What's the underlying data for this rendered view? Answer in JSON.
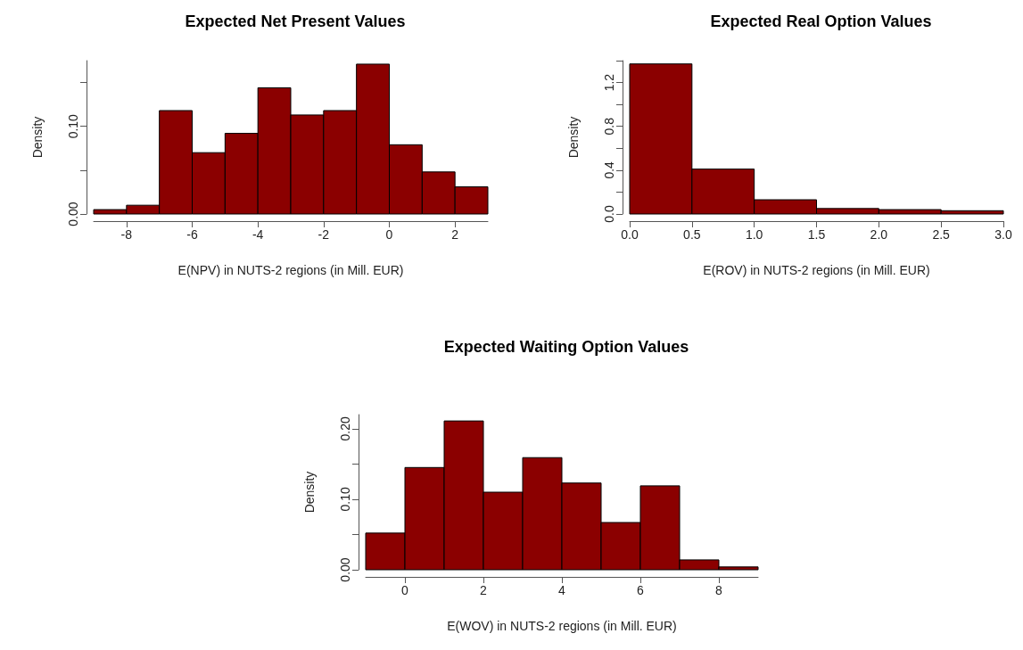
{
  "chart_data": [
    {
      "type": "histogram",
      "title": "Expected Net Present Values",
      "xlabel": "E(NPV) in NUTS-2 regions (in Mill. EUR)",
      "ylabel": "Density",
      "color": "#8b0000",
      "bins": [
        -9,
        -8,
        -7,
        -6,
        -5,
        -4,
        -3,
        -2,
        -1,
        0,
        1,
        2,
        3
      ],
      "values": [
        0.005,
        0.01,
        0.118,
        0.07,
        0.092,
        0.144,
        0.113,
        0.118,
        0.171,
        0.079,
        0.048,
        0.031
      ],
      "xlim": [
        -9,
        3
      ],
      "xticks": [
        -8,
        -6,
        -4,
        -2,
        0,
        2
      ],
      "ylim": [
        0,
        0.175
      ],
      "yticks": [
        {
          "value": 0,
          "label": "0.00"
        },
        {
          "value": 0.05,
          "label": null
        },
        {
          "value": 0.1,
          "label": "0.10"
        },
        {
          "value": 0.15,
          "label": null
        }
      ],
      "grid": false
    },
    {
      "type": "histogram",
      "title": "Expected Real Option Values",
      "xlabel": "E(ROV) in NUTS-2 regions (in Mill. EUR)",
      "ylabel": "Density",
      "color": "#8b0000",
      "bins": [
        0,
        0.5,
        1,
        1.5,
        2,
        2.5,
        3
      ],
      "values": [
        1.37,
        0.41,
        0.13,
        0.05,
        0.04,
        0.03
      ],
      "xlim": [
        0,
        3
      ],
      "xticks": [
        {
          "value": 0,
          "label": "0.0"
        },
        {
          "value": 0.5,
          "label": "0.5"
        },
        {
          "value": 1,
          "label": "1.0"
        },
        {
          "value": 1.5,
          "label": "1.5"
        },
        {
          "value": 2,
          "label": "2.0"
        },
        {
          "value": 2.5,
          "label": "2.5"
        },
        {
          "value": 3,
          "label": "3.0"
        }
      ],
      "ylim": [
        0,
        1.4
      ],
      "yticks": [
        {
          "value": 0,
          "label": "0.0"
        },
        {
          "value": 0.2,
          "label": null
        },
        {
          "value": 0.4,
          "label": "0.4"
        },
        {
          "value": 0.6,
          "label": null
        },
        {
          "value": 0.8,
          "label": "0.8"
        },
        {
          "value": 1,
          "label": null
        },
        {
          "value": 1.2,
          "label": "1.2"
        },
        {
          "value": 1.4,
          "label": null
        }
      ],
      "grid": false
    },
    {
      "type": "histogram",
      "title": "Expected Waiting Option Values",
      "xlabel": "E(WOV) in NUTS-2 regions (in Mill. EUR)",
      "ylabel": "Density",
      "color": "#8b0000",
      "bins": [
        -1,
        0,
        1,
        2,
        3,
        4,
        5,
        6,
        7,
        8,
        9
      ],
      "values": [
        0.052,
        0.145,
        0.211,
        0.11,
        0.159,
        0.123,
        0.067,
        0.119,
        0.014,
        0.004
      ],
      "xlim": [
        -1,
        9
      ],
      "xticks": [
        0,
        2,
        4,
        6,
        8
      ],
      "ylim": [
        0,
        0.22
      ],
      "yticks": [
        {
          "value": 0,
          "label": "0.00"
        },
        {
          "value": 0.05,
          "label": null
        },
        {
          "value": 0.1,
          "label": "0.10"
        },
        {
          "value": 0.15,
          "label": null
        },
        {
          "value": 0.2,
          "label": "0.20"
        }
      ],
      "grid": false
    }
  ]
}
